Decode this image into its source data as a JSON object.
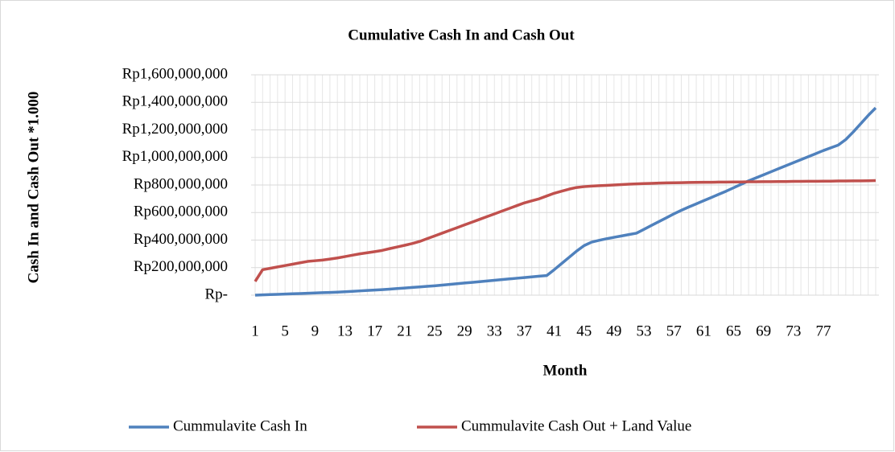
{
  "chart_data": {
    "type": "line",
    "title": "Cumulative Cash In and Cash Out",
    "x_label": "Month",
    "y_label": "Cash In and Cash Out *1.000",
    "categories": [
      "1",
      null,
      null,
      null,
      "5",
      null,
      null,
      null,
      "9",
      null,
      null,
      null,
      "13",
      null,
      null,
      null,
      "17",
      null,
      null,
      null,
      "21",
      null,
      null,
      null,
      "25",
      null,
      null,
      null,
      "29",
      null,
      null,
      null,
      "33",
      null,
      null,
      null,
      "37",
      null,
      null,
      null,
      "41",
      null,
      null,
      null,
      "45",
      null,
      null,
      null,
      "49",
      null,
      null,
      null,
      "53",
      null,
      null,
      null,
      "57",
      null,
      null,
      null,
      "61",
      null,
      null,
      null,
      "65",
      null,
      null,
      null,
      "69",
      null,
      null,
      null,
      "73",
      null,
      null,
      null,
      "77",
      null,
      null,
      null,
      null,
      null,
      null,
      null
    ],
    "series": [
      {
        "name": "Cummulavite Cash In",
        "color": "#4f81bd",
        "values": [
          0,
          2000000,
          4000000,
          6000000,
          8000000,
          10000000,
          12000000,
          14000000,
          16000000,
          18000000,
          20000000,
          22000000,
          25000000,
          28000000,
          31000000,
          34000000,
          37000000,
          40000000,
          44000000,
          48000000,
          52000000,
          56000000,
          60000000,
          64000000,
          68000000,
          73000000,
          78000000,
          83000000,
          88000000,
          93000000,
          98000000,
          103000000,
          108000000,
          113000000,
          118000000,
          123000000,
          128000000,
          133000000,
          138000000,
          142000000,
          185000000,
          230000000,
          275000000,
          320000000,
          360000000,
          385000000,
          398000000,
          410000000,
          420000000,
          430000000,
          440000000,
          450000000,
          478000000,
          506000000,
          534000000,
          562000000,
          590000000,
          616000000,
          640000000,
          663000000,
          686000000,
          709000000,
          732000000,
          755000000,
          780000000,
          805000000,
          830000000,
          852000000,
          874000000,
          896000000,
          918000000,
          940000000,
          962000000,
          984000000,
          1006000000,
          1028000000,
          1050000000,
          1070000000,
          1090000000,
          1130000000,
          1185000000,
          1245000000,
          1305000000,
          1360000000
        ]
      },
      {
        "name": "Cummulavite Cash Out + Land Value",
        "color": "#c0504d",
        "values": [
          100000000,
          185000000,
          195000000,
          205000000,
          215000000,
          225000000,
          235000000,
          245000000,
          250000000,
          255000000,
          262000000,
          270000000,
          280000000,
          290000000,
          300000000,
          308000000,
          316000000,
          325000000,
          338000000,
          350000000,
          362000000,
          375000000,
          390000000,
          410000000,
          430000000,
          450000000,
          470000000,
          490000000,
          510000000,
          530000000,
          550000000,
          570000000,
          590000000,
          610000000,
          630000000,
          650000000,
          670000000,
          685000000,
          700000000,
          720000000,
          740000000,
          755000000,
          770000000,
          782000000,
          788000000,
          792000000,
          795000000,
          797000000,
          800000000,
          803000000,
          806000000,
          808000000,
          810000000,
          812000000,
          814000000,
          815000000,
          816000000,
          817000000,
          818000000,
          819000000,
          820000000,
          820000000,
          821000000,
          821000000,
          822000000,
          822000000,
          823000000,
          823000000,
          824000000,
          824000000,
          825000000,
          825000000,
          826000000,
          826000000,
          827000000,
          827000000,
          828000000,
          828000000,
          829000000,
          829000000,
          830000000,
          830000000,
          831000000,
          832000000
        ]
      }
    ],
    "ylim": [
      0,
      1600000000
    ],
    "yticks": [
      {
        "value": 0,
        "label": "Rp-"
      },
      {
        "value": 200000000,
        "label": "Rp200,000,000"
      },
      {
        "value": 400000000,
        "label": "Rp400,000,000"
      },
      {
        "value": 600000000,
        "label": "Rp600,000,000"
      },
      {
        "value": 800000000,
        "label": "Rp800,000,000"
      },
      {
        "value": 1000000000,
        "label": "Rp1,000,000,000"
      },
      {
        "value": 1200000000,
        "label": "Rp1,200,000,000"
      },
      {
        "value": 1400000000,
        "label": "Rp1,400,000,000"
      },
      {
        "value": 1600000000,
        "label": "Rp1,600,000,000"
      }
    ],
    "grid": true,
    "legend": "bottom"
  }
}
